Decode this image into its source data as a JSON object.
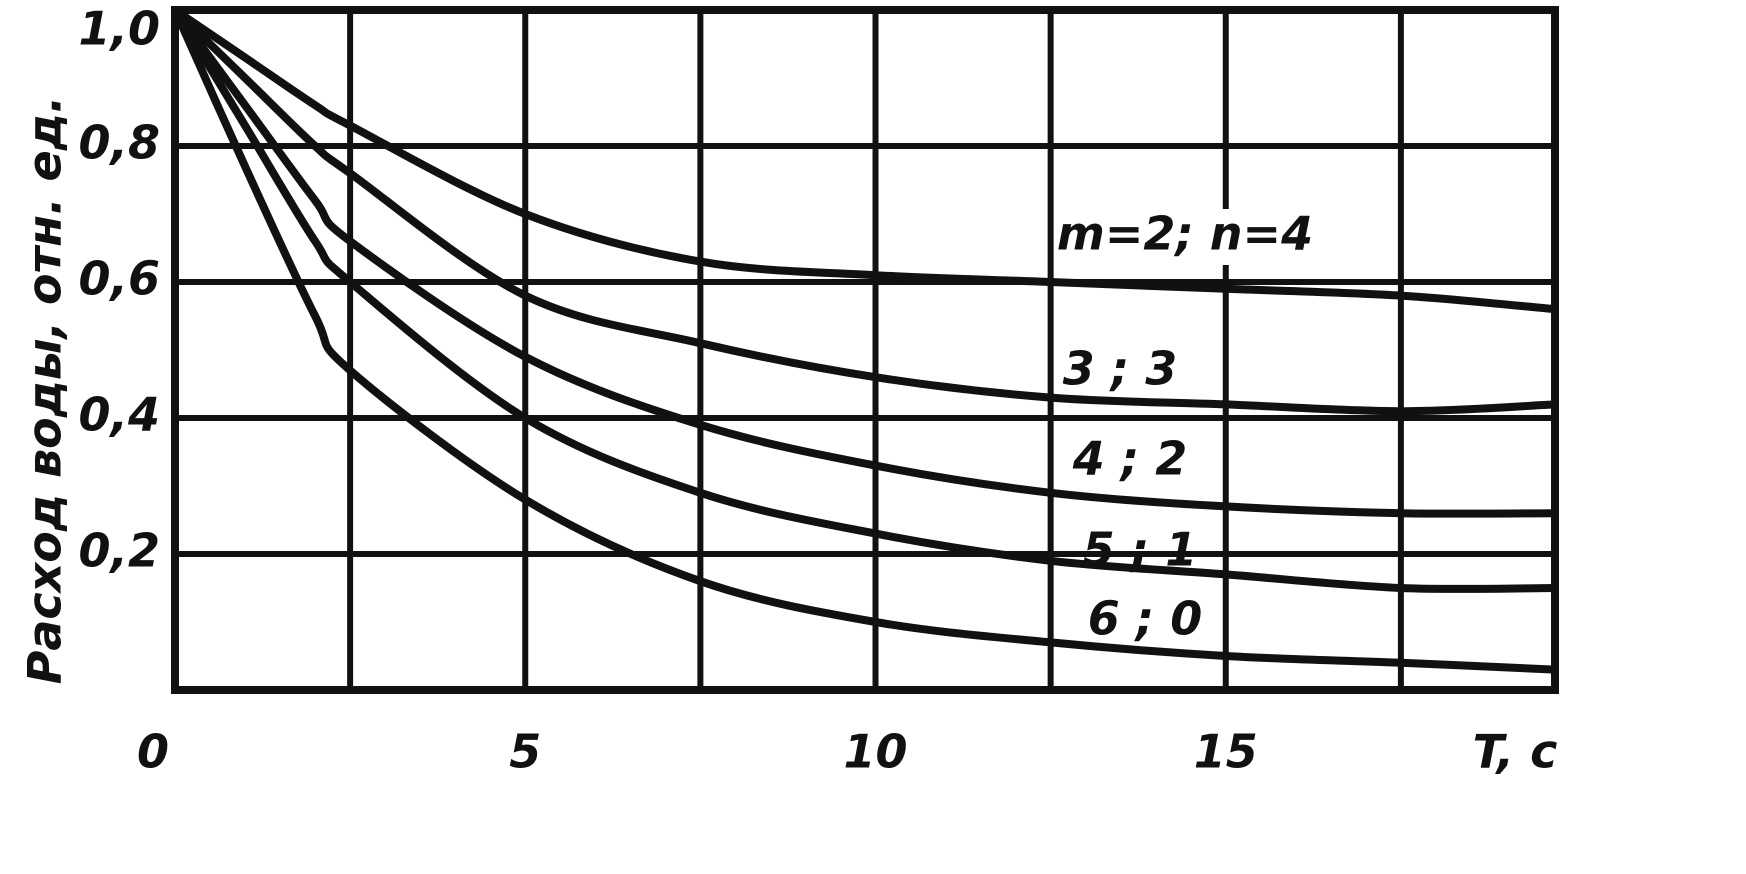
{
  "chart_data": {
    "type": "line",
    "y_label": "Расход воды, отн. ед.",
    "x_label": "T, с",
    "x": [
      0,
      1,
      2,
      2.5,
      5,
      7.5,
      10,
      12.5,
      15,
      17.5,
      19.7
    ],
    "series": [
      {
        "name": "m=2; n=4",
        "color": "#111111",
        "values": [
          1,
          0.93,
          0.86,
          0.83,
          0.7,
          0.63,
          0.61,
          0.6,
          0.59,
          0.58,
          0.56
        ]
      },
      {
        "name": "3 ; 3",
        "color": "#111111",
        "values": [
          1,
          0.9,
          0.8,
          0.76,
          0.58,
          0.51,
          0.46,
          0.43,
          0.42,
          0.41,
          0.42
        ]
      },
      {
        "name": "4 ; 2",
        "color": "#111111",
        "values": [
          1,
          0.86,
          0.72,
          0.66,
          0.49,
          0.39,
          0.33,
          0.29,
          0.27,
          0.26,
          0.26
        ]
      },
      {
        "name": "5 ; 1",
        "color": "#111111",
        "values": [
          1,
          0.83,
          0.66,
          0.6,
          0.4,
          0.29,
          0.23,
          0.19,
          0.17,
          0.15,
          0.15
        ]
      },
      {
        "name": "6 ; 0",
        "color": "#111111",
        "values": [
          1,
          0.77,
          0.55,
          0.47,
          0.28,
          0.16,
          0.1,
          0.07,
          0.05,
          0.04,
          0.03
        ]
      }
    ],
    "xlim": [
      0,
      19.7
    ],
    "ylim": [
      0,
      1
    ],
    "xticks": [
      0,
      5,
      10,
      15
    ],
    "xgrid": [
      2.5,
      5,
      7.5,
      10,
      12.5,
      15,
      17.5
    ],
    "yticks": [
      {
        "value": 0.2,
        "label": "0,2"
      },
      {
        "value": 0.4,
        "label": "0,4"
      },
      {
        "value": 0.6,
        "label": "0,6"
      },
      {
        "value": 0.8,
        "label": "0,8"
      },
      {
        "value": 1.0,
        "label": "1,0"
      }
    ],
    "grid": true
  }
}
